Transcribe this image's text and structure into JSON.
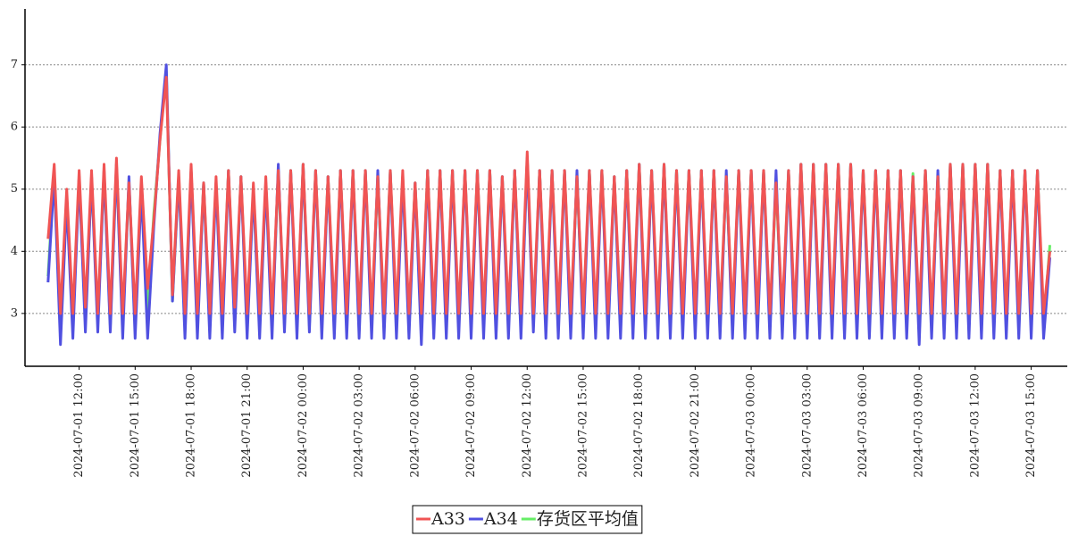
{
  "chart_data": {
    "type": "line",
    "x": [
      "2024-07-01 10:20",
      "2024-07-01 10:40",
      "2024-07-01 11:00",
      "2024-07-01 11:20",
      "2024-07-01 11:40",
      "2024-07-01 12:00",
      "2024-07-01 12:20",
      "2024-07-01 12:40",
      "2024-07-01 13:00",
      "2024-07-01 13:20",
      "2024-07-01 13:40",
      "2024-07-01 14:00",
      "2024-07-01 14:20",
      "2024-07-01 14:40",
      "2024-07-01 15:00",
      "2024-07-01 15:20",
      "2024-07-01 15:40",
      "2024-07-01 16:00",
      "2024-07-01 16:20",
      "2024-07-01 16:40",
      "2024-07-01 17:00",
      "2024-07-01 17:20",
      "2024-07-01 17:40",
      "2024-07-01 18:00",
      "2024-07-01 18:20",
      "2024-07-01 18:40",
      "2024-07-01 19:00",
      "2024-07-01 19:20",
      "2024-07-01 19:40",
      "2024-07-01 20:00",
      "2024-07-01 20:20",
      "2024-07-01 20:40",
      "2024-07-01 21:00",
      "2024-07-01 21:20",
      "2024-07-01 21:40",
      "2024-07-01 22:00",
      "2024-07-01 22:20",
      "2024-07-01 22:40",
      "2024-07-01 23:00",
      "2024-07-01 23:20",
      "2024-07-01 23:40",
      "2024-07-02 00:00",
      "2024-07-02 00:20",
      "2024-07-02 00:40",
      "2024-07-02 01:00",
      "2024-07-02 01:20",
      "2024-07-02 01:40",
      "2024-07-02 02:00",
      "2024-07-02 02:20",
      "2024-07-02 02:40",
      "2024-07-02 03:00",
      "2024-07-02 03:20",
      "2024-07-02 03:40",
      "2024-07-02 04:00",
      "2024-07-02 04:20",
      "2024-07-02 04:40",
      "2024-07-02 05:00",
      "2024-07-02 05:20",
      "2024-07-02 05:40",
      "2024-07-02 06:00",
      "2024-07-02 06:20",
      "2024-07-02 06:40",
      "2024-07-02 07:00",
      "2024-07-02 07:20",
      "2024-07-02 07:40",
      "2024-07-02 08:00",
      "2024-07-02 08:20",
      "2024-07-02 08:40",
      "2024-07-02 09:00",
      "2024-07-02 09:20",
      "2024-07-02 09:40",
      "2024-07-02 10:00",
      "2024-07-02 10:20",
      "2024-07-02 10:40",
      "2024-07-02 11:00",
      "2024-07-02 11:20",
      "2024-07-02 11:40",
      "2024-07-02 12:00",
      "2024-07-02 12:20",
      "2024-07-02 12:40",
      "2024-07-02 13:00",
      "2024-07-02 13:20",
      "2024-07-02 13:40",
      "2024-07-02 14:00",
      "2024-07-02 14:20",
      "2024-07-02 14:40",
      "2024-07-02 15:00",
      "2024-07-02 15:20",
      "2024-07-02 15:40",
      "2024-07-02 16:00",
      "2024-07-02 16:20",
      "2024-07-02 16:40",
      "2024-07-02 17:00",
      "2024-07-02 17:20",
      "2024-07-02 17:40",
      "2024-07-02 18:00",
      "2024-07-02 18:20",
      "2024-07-02 18:40",
      "2024-07-02 19:00",
      "2024-07-02 19:20",
      "2024-07-02 19:40",
      "2024-07-02 20:00",
      "2024-07-02 20:20",
      "2024-07-02 20:40",
      "2024-07-02 21:00",
      "2024-07-02 21:20",
      "2024-07-02 21:40",
      "2024-07-02 22:00",
      "2024-07-02 22:20",
      "2024-07-02 22:40",
      "2024-07-02 23:00",
      "2024-07-02 23:20",
      "2024-07-02 23:40",
      "2024-07-03 00:00",
      "2024-07-03 00:20",
      "2024-07-03 00:40",
      "2024-07-03 01:00",
      "2024-07-03 01:20",
      "2024-07-03 01:40",
      "2024-07-03 02:00",
      "2024-07-03 02:20",
      "2024-07-03 02:40",
      "2024-07-03 03:00",
      "2024-07-03 03:20",
      "2024-07-03 03:40",
      "2024-07-03 04:00",
      "2024-07-03 04:20",
      "2024-07-03 04:40",
      "2024-07-03 05:00",
      "2024-07-03 05:20",
      "2024-07-03 05:40",
      "2024-07-03 06:00",
      "2024-07-03 06:20",
      "2024-07-03 06:40",
      "2024-07-03 07:00",
      "2024-07-03 07:20",
      "2024-07-03 07:40",
      "2024-07-03 08:00",
      "2024-07-03 08:20",
      "2024-07-03 08:40",
      "2024-07-03 09:00",
      "2024-07-03 09:20",
      "2024-07-03 09:40",
      "2024-07-03 10:00",
      "2024-07-03 10:20",
      "2024-07-03 10:40",
      "2024-07-03 11:00",
      "2024-07-03 11:20",
      "2024-07-03 11:40",
      "2024-07-03 12:00",
      "2024-07-03 12:20",
      "2024-07-03 12:40",
      "2024-07-03 13:00",
      "2024-07-03 13:20",
      "2024-07-03 13:40",
      "2024-07-03 14:00",
      "2024-07-03 14:20",
      "2024-07-03 14:40",
      "2024-07-03 15:00",
      "2024-07-03 15:20",
      "2024-07-03 15:40",
      "2024-07-03 16:00"
    ],
    "series": [
      {
        "name": "A33",
        "color": "#f05454",
        "values": [
          4.2,
          5.4,
          3.0,
          5.0,
          3.0,
          5.3,
          3.1,
          5.3,
          3.0,
          5.4,
          3.0,
          5.5,
          3.0,
          5.1,
          3.0,
          5.2,
          3.4,
          4.5,
          5.8,
          6.8,
          3.3,
          5.3,
          3.0,
          5.4,
          3.0,
          5.1,
          3.0,
          5.2,
          3.0,
          5.3,
          3.1,
          5.2,
          3.0,
          5.1,
          3.0,
          5.2,
          3.0,
          5.3,
          3.0,
          5.3,
          3.0,
          5.4,
          3.0,
          5.3,
          3.0,
          5.2,
          3.0,
          5.3,
          3.0,
          5.3,
          3.0,
          5.3,
          3.0,
          5.2,
          3.0,
          5.3,
          3.0,
          5.3,
          3.0,
          5.1,
          3.0,
          5.3,
          3.0,
          5.3,
          3.0,
          5.3,
          3.0,
          5.3,
          3.0,
          5.3,
          3.0,
          5.3,
          3.0,
          5.2,
          3.0,
          5.3,
          3.0,
          5.6,
          3.0,
          5.3,
          3.0,
          5.3,
          3.0,
          5.3,
          3.0,
          5.2,
          3.0,
          5.3,
          3.0,
          5.3,
          3.0,
          5.2,
          3.0,
          5.3,
          3.0,
          5.4,
          3.0,
          5.3,
          3.0,
          5.4,
          3.0,
          5.3,
          3.0,
          5.3,
          3.0,
          5.3,
          3.0,
          5.3,
          3.0,
          5.2,
          3.0,
          5.3,
          3.0,
          5.3,
          3.0,
          5.3,
          3.0,
          5.1,
          3.0,
          5.3,
          3.0,
          5.4,
          3.0,
          5.4,
          3.0,
          5.4,
          3.0,
          5.4,
          3.0,
          5.4,
          3.0,
          5.3,
          3.0,
          5.3,
          3.0,
          5.3,
          3.0,
          5.3,
          3.0,
          5.2,
          3.0,
          5.3,
          3.0,
          5.2,
          3.0,
          5.4,
          3.0,
          5.4,
          3.0,
          5.4,
          3.0,
          5.4,
          3.0,
          5.3,
          3.0,
          5.3,
          3.0,
          5.3,
          3.0,
          5.3,
          3.0,
          4.0
        ]
      },
      {
        "name": "A34",
        "color": "#5050e0",
        "values": [
          3.5,
          5.2,
          2.5,
          4.8,
          2.6,
          5.2,
          2.7,
          5.2,
          2.7,
          5.3,
          2.7,
          5.4,
          2.6,
          5.2,
          2.6,
          5.0,
          2.6,
          4.4,
          5.9,
          7.0,
          3.2,
          5.2,
          2.6,
          5.3,
          2.6,
          5.1,
          2.6,
          5.1,
          2.6,
          5.3,
          2.7,
          5.2,
          2.6,
          5.0,
          2.6,
          5.1,
          2.6,
          5.4,
          2.7,
          5.3,
          2.6,
          5.4,
          2.7,
          5.3,
          2.6,
          5.2,
          2.6,
          5.3,
          2.6,
          5.3,
          2.6,
          5.3,
          2.6,
          5.3,
          2.6,
          5.3,
          2.6,
          5.2,
          2.6,
          5.1,
          2.5,
          5.3,
          2.6,
          5.3,
          2.6,
          5.3,
          2.6,
          5.3,
          2.6,
          5.3,
          2.6,
          5.3,
          2.6,
          5.2,
          2.6,
          5.3,
          2.6,
          5.5,
          2.7,
          5.3,
          2.6,
          5.3,
          2.6,
          5.3,
          2.6,
          5.3,
          2.6,
          5.3,
          2.6,
          5.3,
          2.6,
          5.2,
          2.6,
          5.3,
          2.6,
          5.4,
          2.6,
          5.3,
          2.6,
          5.4,
          2.6,
          5.3,
          2.6,
          5.3,
          2.6,
          5.3,
          2.6,
          5.3,
          2.6,
          5.3,
          2.6,
          5.3,
          2.6,
          5.3,
          2.6,
          5.3,
          2.6,
          5.3,
          2.6,
          5.3,
          2.6,
          5.4,
          2.6,
          5.4,
          2.6,
          5.4,
          2.6,
          5.4,
          2.6,
          5.4,
          2.6,
          5.3,
          2.6,
          5.3,
          2.6,
          5.3,
          2.6,
          5.3,
          2.6,
          5.2,
          2.5,
          5.3,
          2.6,
          5.3,
          2.6,
          5.4,
          2.6,
          5.4,
          2.6,
          5.4,
          2.6,
          5.4,
          2.6,
          5.3,
          2.6,
          5.3,
          2.6,
          5.3,
          2.6,
          5.3,
          2.6,
          3.9
        ]
      },
      {
        "name": "存货区平均值",
        "color": "#66ee66",
        "values": [
          3.6,
          5.3,
          2.8,
          4.9,
          2.8,
          5.2,
          2.9,
          5.2,
          2.9,
          5.3,
          2.8,
          5.4,
          2.8,
          5.1,
          2.8,
          5.1,
          3.0,
          4.6,
          5.8,
          6.9,
          3.2,
          5.2,
          2.8,
          5.3,
          2.8,
          5.1,
          2.8,
          5.1,
          2.8,
          5.3,
          2.9,
          5.2,
          2.8,
          5.0,
          2.8,
          5.1,
          2.8,
          5.3,
          2.8,
          5.3,
          2.8,
          5.4,
          2.8,
          5.3,
          2.8,
          5.2,
          2.8,
          5.3,
          2.8,
          5.3,
          2.8,
          5.3,
          2.8,
          5.2,
          2.8,
          5.3,
          2.8,
          5.2,
          2.8,
          5.1,
          2.8,
          5.3,
          2.8,
          5.3,
          2.8,
          5.3,
          2.8,
          5.3,
          2.8,
          5.3,
          2.8,
          5.3,
          2.8,
          5.2,
          2.8,
          5.3,
          2.8,
          5.5,
          2.8,
          5.3,
          2.8,
          5.3,
          2.8,
          5.3,
          2.8,
          5.2,
          2.8,
          5.3,
          2.8,
          5.3,
          2.8,
          5.2,
          2.8,
          5.3,
          2.8,
          5.4,
          2.8,
          5.3,
          2.8,
          5.4,
          2.8,
          5.3,
          2.8,
          5.3,
          2.8,
          5.3,
          2.8,
          5.3,
          2.8,
          5.2,
          2.8,
          5.3,
          2.8,
          5.3,
          2.8,
          5.3,
          2.8,
          5.1,
          2.8,
          5.3,
          2.8,
          5.4,
          2.8,
          5.4,
          2.8,
          5.4,
          2.8,
          5.4,
          2.8,
          5.4,
          2.8,
          5.3,
          2.8,
          5.3,
          2.8,
          5.3,
          2.8,
          5.3,
          2.8,
          5.25,
          2.8,
          5.3,
          2.8,
          5.2,
          2.8,
          5.4,
          2.8,
          5.4,
          2.8,
          5.4,
          2.8,
          5.4,
          2.8,
          5.3,
          2.8,
          5.3,
          2.8,
          5.3,
          2.8,
          5.3,
          2.8,
          4.1
        ]
      }
    ],
    "xlim": [
      "2024-07-01 09:06",
      "2024-07-03 16:56"
    ],
    "xticks": [
      "2024-07-01 12:00",
      "2024-07-01 15:00",
      "2024-07-01 18:00",
      "2024-07-01 21:00",
      "2024-07-02 00:00",
      "2024-07-02 03:00",
      "2024-07-02 06:00",
      "2024-07-02 09:00",
      "2024-07-02 12:00",
      "2024-07-02 15:00",
      "2024-07-02 18:00",
      "2024-07-02 21:00",
      "2024-07-03 00:00",
      "2024-07-03 03:00",
      "2024-07-03 06:00",
      "2024-07-03 09:00",
      "2024-07-03 12:00",
      "2024-07-03 15:00"
    ],
    "ylim": [
      2.15,
      7.9
    ],
    "yticks": [
      3,
      4,
      5,
      6,
      7
    ],
    "grid": true,
    "legend": "bottom"
  }
}
